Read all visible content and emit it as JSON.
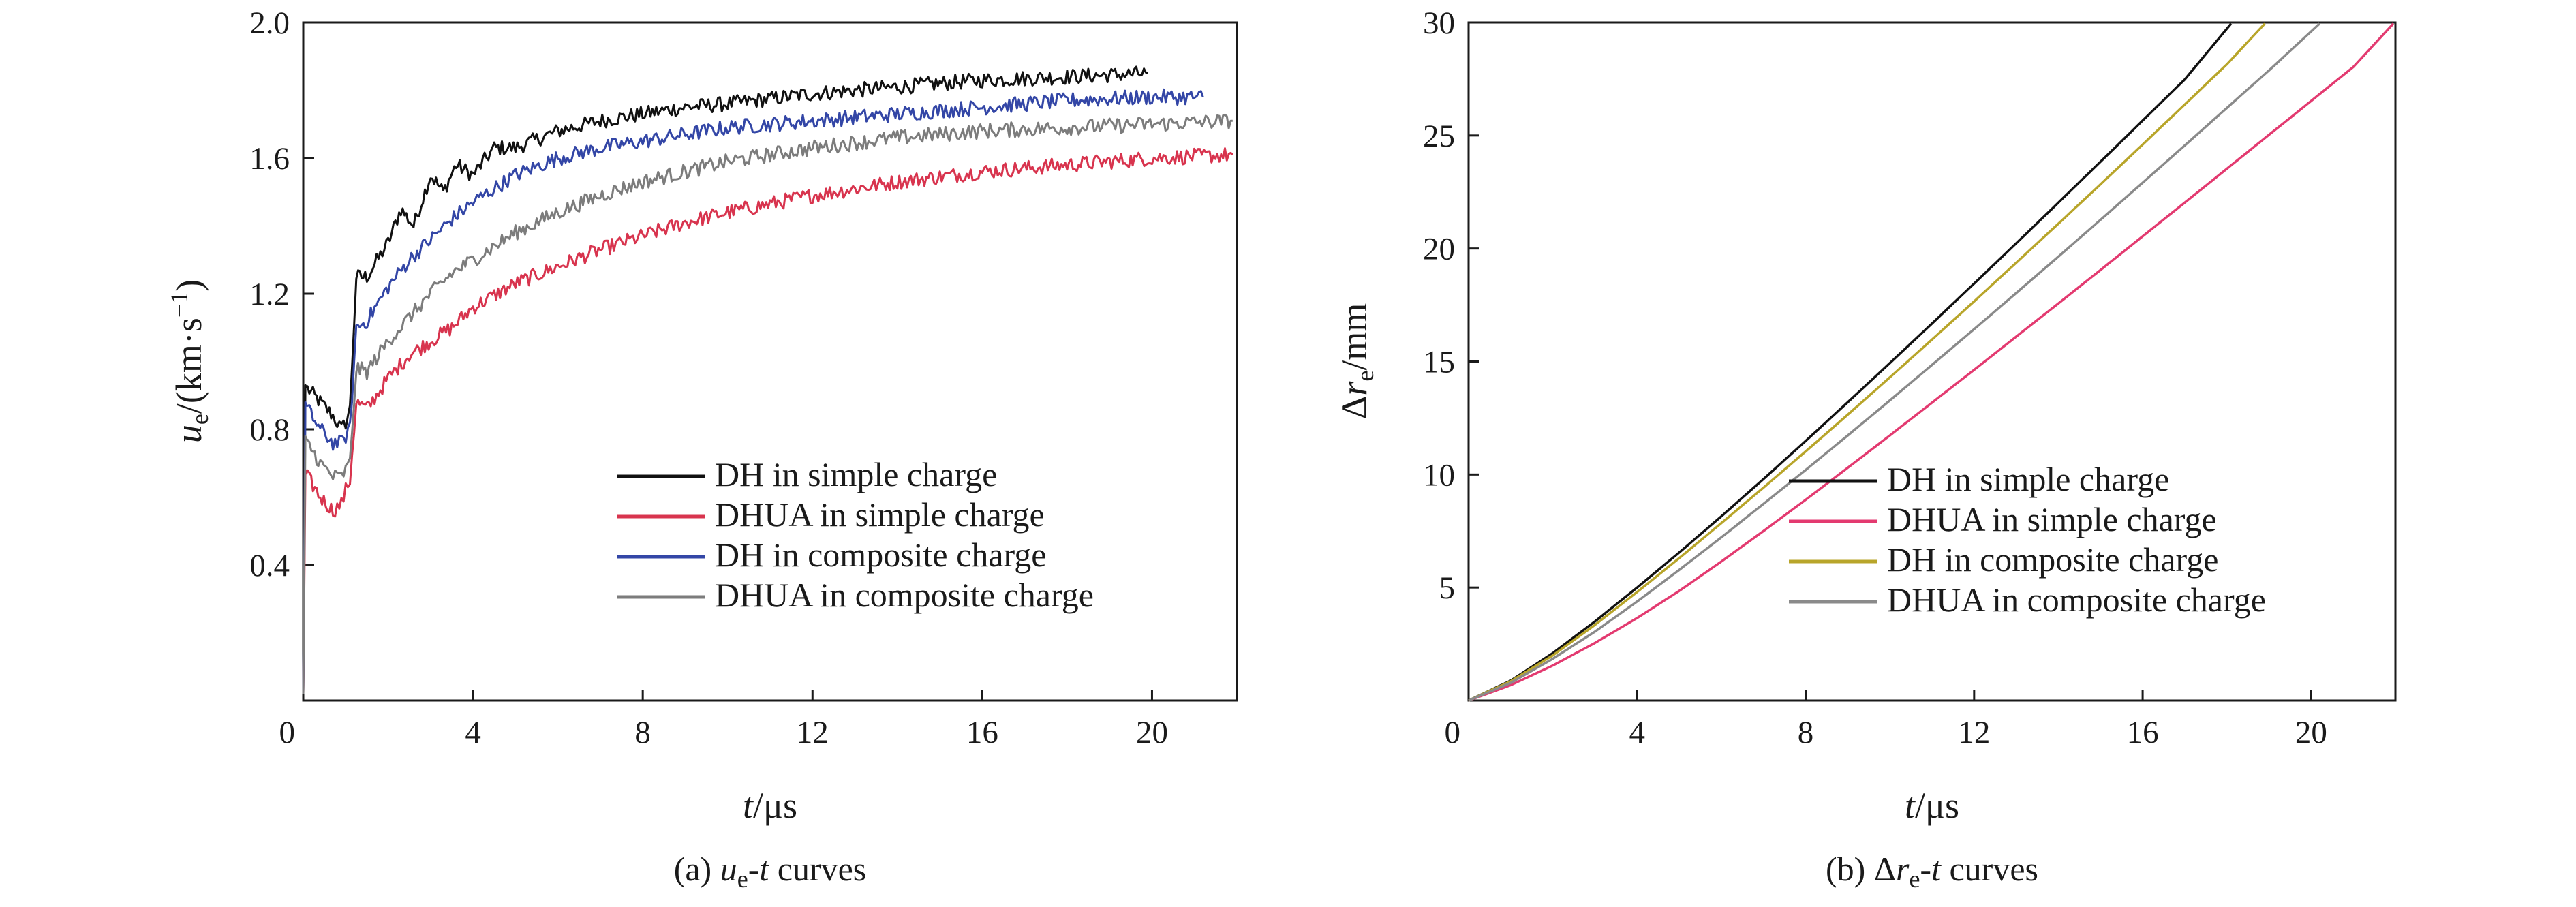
{
  "chart_data": [
    {
      "type": "line",
      "panel": "a",
      "caption": [
        "(a) ",
        "u",
        "e",
        "-",
        "t",
        " curves"
      ],
      "xlabel": [
        "t",
        "/μs"
      ],
      "ylabel": [
        "u",
        "e",
        "/(km·s",
        "−1",
        ")"
      ],
      "xlim": [
        0,
        22
      ],
      "ylim": [
        0,
        2.0
      ],
      "xticks": [
        0,
        4,
        8,
        12,
        16,
        20
      ],
      "xtick_labels": [
        "0",
        "4",
        "8",
        "12",
        "16",
        "20"
      ],
      "yticks": [
        0.4,
        0.8,
        1.2,
        1.6,
        2.0
      ],
      "ytick_labels": [
        "0.4",
        "0.8",
        "1.2",
        "1.6",
        "2.0"
      ],
      "legend_position": "bottom-right",
      "series": [
        {
          "name": "DH in simple charge",
          "color": "#111111",
          "x": [
            0,
            0.05,
            0.1,
            0.4,
            0.7,
            0.9,
            1.0,
            1.1,
            1.25,
            1.5,
            2.0,
            2.3,
            2.6,
            3.0,
            3.3,
            3.6,
            4.0,
            4.5,
            5.0,
            6.0,
            7.0,
            8.0,
            9.0,
            10.0,
            12.0,
            14.0,
            16.0,
            18.0,
            19.9
          ],
          "y": [
            0.02,
            0.93,
            0.92,
            0.88,
            0.84,
            0.8,
            0.82,
            0.86,
            1.25,
            1.25,
            1.35,
            1.45,
            1.4,
            1.55,
            1.5,
            1.58,
            1.55,
            1.63,
            1.63,
            1.68,
            1.71,
            1.73,
            1.75,
            1.76,
            1.79,
            1.81,
            1.83,
            1.84,
            1.85
          ]
        },
        {
          "name": "DHUA in simple charge",
          "color": "#d8344e",
          "x": [
            0,
            0.05,
            0.1,
            0.4,
            0.7,
            0.9,
            1.0,
            1.1,
            1.25,
            1.5,
            2.0,
            2.5,
            3.0,
            3.5,
            4.0,
            5.0,
            6.0,
            7.0,
            8.0,
            9.0,
            10.0,
            12.0,
            14.0,
            16.0,
            18.0,
            20.0,
            21.9
          ],
          "y": [
            0.02,
            0.68,
            0.66,
            0.6,
            0.56,
            0.58,
            0.62,
            0.65,
            0.88,
            0.86,
            0.95,
            1.02,
            1.06,
            1.1,
            1.16,
            1.23,
            1.28,
            1.33,
            1.37,
            1.41,
            1.44,
            1.49,
            1.53,
            1.56,
            1.58,
            1.6,
            1.61
          ]
        },
        {
          "name": "DH in composite charge",
          "color": "#3346a6",
          "x": [
            0,
            0.05,
            0.1,
            0.4,
            0.7,
            0.9,
            1.0,
            1.1,
            1.25,
            1.5,
            2.0,
            2.5,
            3.0,
            3.5,
            4.0,
            5.0,
            6.0,
            7.0,
            8.0,
            9.0,
            10.0,
            12.0,
            14.0,
            16.0,
            18.0,
            20.0,
            21.2
          ],
          "y": [
            0.02,
            0.88,
            0.86,
            0.8,
            0.76,
            0.76,
            0.78,
            0.8,
            1.1,
            1.12,
            1.22,
            1.3,
            1.36,
            1.42,
            1.47,
            1.55,
            1.6,
            1.63,
            1.65,
            1.67,
            1.69,
            1.71,
            1.73,
            1.75,
            1.77,
            1.78,
            1.78
          ]
        },
        {
          "name": "DHUA in composite charge",
          "color": "#7c7c7c",
          "x": [
            0,
            0.05,
            0.1,
            0.4,
            0.7,
            0.9,
            1.0,
            1.1,
            1.25,
            1.5,
            2.0,
            2.5,
            3.0,
            3.5,
            4.0,
            5.0,
            6.0,
            7.0,
            8.0,
            9.0,
            10.0,
            12.0,
            14.0,
            16.0,
            18.0,
            20.0,
            21.9
          ],
          "y": [
            0.02,
            0.78,
            0.76,
            0.7,
            0.66,
            0.66,
            0.68,
            0.7,
            0.98,
            0.97,
            1.06,
            1.13,
            1.2,
            1.26,
            1.3,
            1.38,
            1.44,
            1.49,
            1.53,
            1.56,
            1.59,
            1.63,
            1.66,
            1.68,
            1.69,
            1.7,
            1.71
          ]
        }
      ]
    },
    {
      "type": "line",
      "panel": "b",
      "caption": [
        "(b) Δ",
        "r",
        "e",
        "-",
        "t",
        " curves"
      ],
      "xlabel": [
        "t",
        "/μs"
      ],
      "ylabel": [
        "Δ",
        "r",
        "e",
        "/mm"
      ],
      "xlim": [
        0,
        22
      ],
      "ylim": [
        0,
        30
      ],
      "xticks": [
        0,
        4,
        8,
        12,
        16,
        20
      ],
      "xtick_labels": [
        "0",
        "4",
        "8",
        "12",
        "16",
        "20"
      ],
      "yticks": [
        5,
        10,
        15,
        20,
        25,
        30
      ],
      "ytick_labels": [
        "5",
        "10",
        "15",
        "20",
        "25",
        "30"
      ],
      "legend_position": "bottom-right",
      "series": [
        {
          "name": "DH in simple charge",
          "color": "#111111",
          "x": [
            0,
            1,
            2,
            3,
            4,
            5,
            6,
            7,
            8,
            9,
            10,
            11,
            12,
            13,
            14,
            15,
            16,
            17,
            18.1
          ],
          "y": [
            0,
            0.88,
            2.1,
            3.5,
            5.0,
            6.55,
            8.15,
            9.8,
            11.48,
            13.2,
            14.93,
            16.68,
            18.45,
            20.23,
            22.03,
            23.84,
            25.66,
            27.48,
            29.95
          ]
        },
        {
          "name": "DHUA in simple charge",
          "color": "#e33a70",
          "x": [
            0,
            1,
            2,
            3,
            4,
            5,
            6,
            7,
            8,
            9,
            10,
            11,
            12,
            13,
            14,
            15,
            16,
            17,
            18,
            19,
            20,
            21,
            21.95
          ],
          "y": [
            0,
            0.68,
            1.55,
            2.55,
            3.65,
            4.85,
            6.15,
            7.5,
            8.88,
            10.3,
            11.73,
            13.18,
            14.63,
            16.1,
            17.57,
            19.05,
            20.54,
            22.03,
            23.53,
            25.03,
            26.53,
            28.03,
            29.95
          ]
        },
        {
          "name": "DH in composite charge",
          "color": "#b8a52a",
          "x": [
            0,
            1,
            2,
            3,
            4,
            5,
            6,
            7,
            8,
            9,
            10,
            11,
            12,
            13,
            14,
            15,
            16,
            17,
            18,
            18.9
          ],
          "y": [
            0,
            0.85,
            2.0,
            3.35,
            4.8,
            6.3,
            7.85,
            9.42,
            11.02,
            12.65,
            14.3,
            15.97,
            17.66,
            19.37,
            21.1,
            22.84,
            24.6,
            26.37,
            28.15,
            29.95
          ]
        },
        {
          "name": "DHUA in composite charge",
          "color": "#8a8a8a",
          "x": [
            0,
            1,
            2,
            3,
            4,
            5,
            6,
            7,
            8,
            9,
            10,
            11,
            12,
            13,
            14,
            15,
            16,
            17,
            18,
            19,
            20.2
          ],
          "y": [
            0,
            0.78,
            1.85,
            3.05,
            4.38,
            5.78,
            7.22,
            8.7,
            10.2,
            11.73,
            13.28,
            14.85,
            16.43,
            18.03,
            19.64,
            21.27,
            22.91,
            24.56,
            26.22,
            27.88,
            29.95
          ]
        }
      ]
    }
  ]
}
